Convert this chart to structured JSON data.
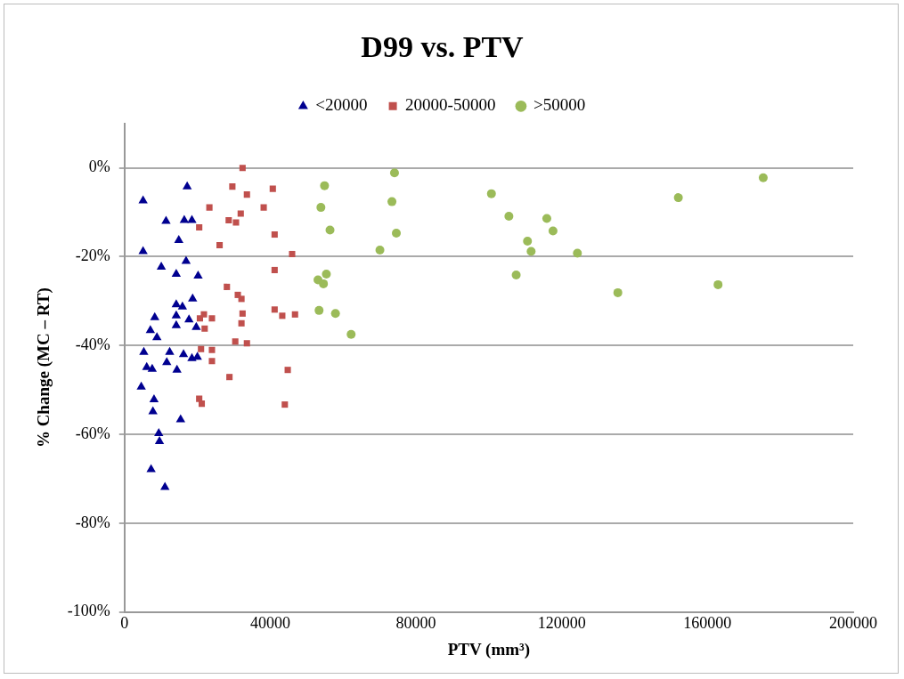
{
  "chart_data": {
    "type": "scatter",
    "title": "D99 vs. PTV",
    "xlabel": "PTV (mm³)",
    "ylabel": "% Change (MC – RT)",
    "xlim": [
      0,
      200000
    ],
    "xticks": [
      0,
      40000,
      80000,
      120000,
      160000,
      200000
    ],
    "ylim": [
      -100,
      10
    ],
    "yticks": [
      {
        "value": -100,
        "label": "-100%"
      },
      {
        "value": -80,
        "label": "-80%"
      },
      {
        "value": -60,
        "label": "-60%"
      },
      {
        "value": -40,
        "label": "-40%"
      },
      {
        "value": -20,
        "label": "-20%"
      },
      {
        "value": 0,
        "label": "0%"
      }
    ],
    "grid": "y",
    "legend": "top",
    "series": [
      {
        "name": "<20000",
        "color": "#000090",
        "marker": "triangle",
        "x": [
          17200,
          5100,
          11400,
          16400,
          18500,
          14900,
          5100,
          10100,
          16900,
          14200,
          20200,
          18700,
          14200,
          15900,
          8300,
          14200,
          17700,
          14200,
          19700,
          7100,
          8900,
          5300,
          12400,
          16200,
          18500,
          20000,
          11600,
          6100,
          7600,
          14400,
          4600,
          8100,
          7800,
          15400,
          9400,
          9600,
          7300,
          11100
        ],
        "values": [
          -4.2,
          -7.4,
          -12,
          -11.8,
          -11.8,
          -16.3,
          -18.8,
          -22.3,
          -21,
          -23.9,
          -24.3,
          -29.5,
          -30.8,
          -31.3,
          -33.7,
          -33.3,
          -34.2,
          -35.5,
          -35.9,
          -36.6,
          -38.2,
          -41.5,
          -41.5,
          -42,
          -42.9,
          -42.6,
          -43.8,
          -44.9,
          -45.3,
          -45.5,
          -49.3,
          -52.2,
          -54.9,
          -56.7,
          -59.8,
          -61.6,
          -67.9,
          -71.9
        ]
      },
      {
        "name": "20000-50000",
        "color": "#c0504d",
        "marker": "square",
        "x": [
          32400,
          29600,
          40700,
          33600,
          38200,
          23300,
          31900,
          28600,
          30600,
          20500,
          41200,
          26100,
          46000,
          41200,
          28100,
          31100,
          32100,
          41200,
          43300,
          46800,
          32400,
          21800,
          24000,
          20700,
          32100,
          22000,
          30400,
          33600,
          21000,
          24000,
          24000,
          28800,
          44800,
          20500,
          21200,
          44000
        ],
        "values": [
          0,
          -4.2,
          -4.7,
          -6,
          -8.9,
          -8.9,
          -10.3,
          -11.8,
          -12.3,
          -13.4,
          -15,
          -17.4,
          -19.4,
          -23,
          -26.8,
          -28.6,
          -29.5,
          -31.9,
          -33.3,
          -33,
          -32.8,
          -33,
          -33.9,
          -33.9,
          -35,
          -36.2,
          -39.1,
          -39.5,
          -40.8,
          -41,
          -43.5,
          -47.1,
          -45.5,
          -52,
          -53.1,
          -53.3
        ]
      },
      {
        "name": ">50000",
        "color": "#9bbb59",
        "marker": "circle",
        "x": [
          74100,
          54900,
          100700,
          73400,
          53900,
          105500,
          115900,
          56400,
          74600,
          117600,
          110600,
          111600,
          70100,
          124300,
          55400,
          53100,
          54600,
          107500,
          53400,
          57900,
          62200,
          175300,
          152000,
          135400,
          162900
        ],
        "values": [
          -1.1,
          -4,
          -5.8,
          -7.6,
          -8.9,
          -10.9,
          -11.4,
          -14,
          -14.7,
          -14.2,
          -16.5,
          -18.8,
          -18.5,
          -19.2,
          -23.9,
          -25.2,
          -26.1,
          -24.1,
          -32.1,
          -32.8,
          -37.5,
          -2.2,
          -6.7,
          -28.1,
          -26.3
        ]
      }
    ]
  }
}
